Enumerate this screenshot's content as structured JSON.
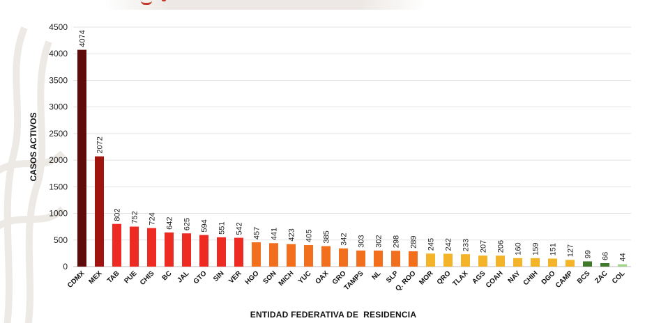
{
  "chart_data": {
    "type": "bar",
    "title": "",
    "xlabel": "ENTIDAD FEDERATIVA DE  RESIDENCIA",
    "ylabel": "CASOS ACTIVOS",
    "ylim": [
      0,
      4500
    ],
    "yticks": [
      0,
      500,
      1000,
      1500,
      2000,
      2500,
      3000,
      3500,
      4000,
      4500
    ],
    "grid": true,
    "categories": [
      "CDMX",
      "MEX",
      "TAB",
      "PUE",
      "CHIS",
      "BC",
      "JAL",
      "GTO",
      "SIN",
      "VER",
      "HGO",
      "SON",
      "MICH",
      "YUC",
      "OAX",
      "GRO",
      "TAMPS",
      "NL",
      "SLP",
      "Q. ROO",
      "MOR",
      "QRO",
      "TLAX",
      "AGS",
      "COAH",
      "NAY",
      "CHIH",
      "DGO",
      "CAMP",
      "BCS",
      "ZAC",
      "COL"
    ],
    "values": [
      4074,
      2072,
      802,
      752,
      724,
      642,
      625,
      594,
      551,
      542,
      457,
      441,
      423,
      405,
      385,
      342,
      303,
      302,
      298,
      289,
      245,
      242,
      233,
      207,
      206,
      160,
      159,
      151,
      127,
      99,
      66,
      44
    ],
    "colors": [
      "#5e0b0b",
      "#a0140f",
      "#ee2b23",
      "#ee2b23",
      "#ee2b23",
      "#ee2b23",
      "#ee2b23",
      "#ee2b23",
      "#ee2b23",
      "#ee2b23",
      "#f26f1e",
      "#f26f1e",
      "#f26f1e",
      "#f26f1e",
      "#f26f1e",
      "#f26f1e",
      "#f26f1e",
      "#f26f1e",
      "#f26f1e",
      "#f26f1e",
      "#f3b42a",
      "#f3b42a",
      "#f3b42a",
      "#f3b42a",
      "#f3b42a",
      "#f3b42a",
      "#f3b42a",
      "#f3b42a",
      "#f3b42a",
      "#3f7a2c",
      "#3f7a2c",
      "#9fd48a"
    ]
  }
}
